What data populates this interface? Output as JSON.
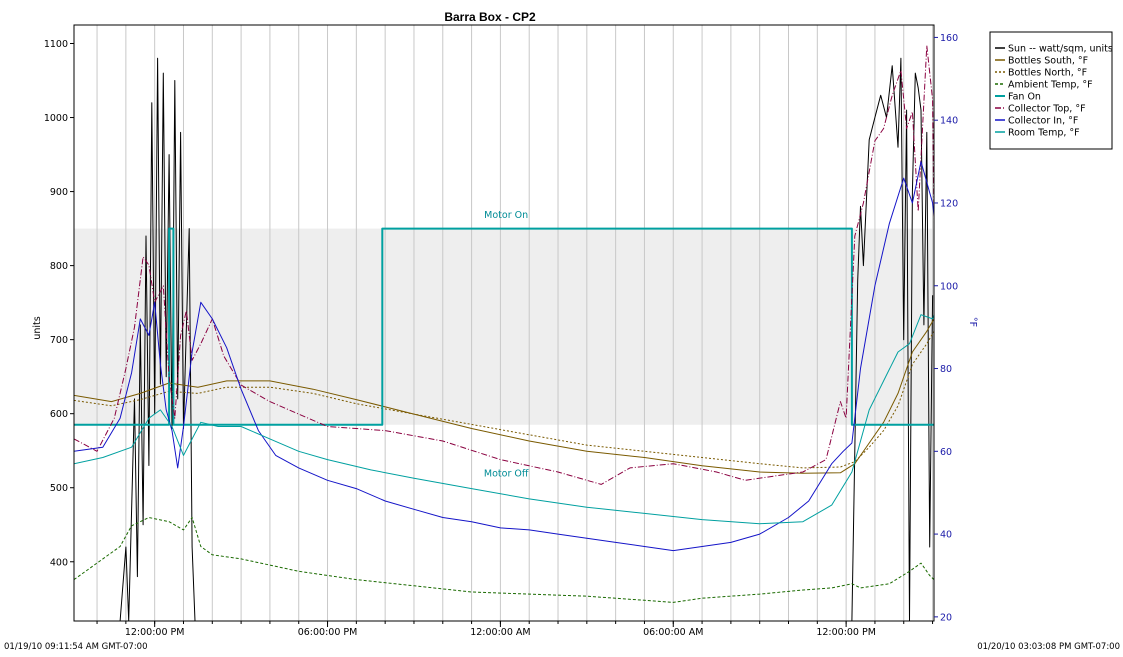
{
  "chart_data": {
    "type": "line",
    "title": "Barra Box - CP2",
    "ylabel": "units",
    "y2label": "°F",
    "ylim": [
      320,
      1125
    ],
    "y2lim": [
      19,
      163
    ],
    "yticks": [
      400,
      500,
      600,
      700,
      800,
      900,
      1000,
      1100
    ],
    "y2ticks": [
      20,
      40,
      60,
      80,
      100,
      120,
      140,
      160
    ],
    "xlim": [
      9.2,
      39.05
    ],
    "xticks": [
      {
        "t": 12,
        "label": "12:00:00 PM"
      },
      {
        "t": 18,
        "label": "06:00:00 PM"
      },
      {
        "t": 24,
        "label": "12:00:00 AM"
      },
      {
        "t": 30,
        "label": "06:00:00 AM"
      },
      {
        "t": 36,
        "label": "12:00:00 PM"
      }
    ],
    "start_label": "01/19/10 09:11:54 AM GMT-07:00",
    "end_label": "01/20/10 03:03:08 PM GMT-07:00",
    "grid": "vertical",
    "legend_position": "top-right",
    "shaded_band": [
      585,
      850
    ],
    "annotations": [
      {
        "text": "Motor On",
        "x": 24.2,
        "y": 864
      },
      {
        "text": "Motor Off",
        "x": 24.2,
        "y": 515
      }
    ],
    "series": [
      {
        "name": "Sun -- watt/sqm, units",
        "axis": "left",
        "color": "#000000",
        "dash": "",
        "points": [
          [
            9.2,
            320
          ],
          [
            10.8,
            320
          ],
          [
            11.0,
            420
          ],
          [
            11.1,
            320
          ],
          [
            11.3,
            620
          ],
          [
            11.4,
            380
          ],
          [
            11.5,
            720
          ],
          [
            11.6,
            450
          ],
          [
            11.7,
            840
          ],
          [
            11.8,
            530
          ],
          [
            11.9,
            1020
          ],
          [
            12.0,
            600
          ],
          [
            12.1,
            1080
          ],
          [
            12.2,
            640
          ],
          [
            12.3,
            1060
          ],
          [
            12.4,
            650
          ],
          [
            12.5,
            950
          ],
          [
            12.6,
            580
          ],
          [
            12.7,
            1050
          ],
          [
            12.8,
            620
          ],
          [
            12.9,
            980
          ],
          [
            13.0,
            580
          ],
          [
            13.2,
            850
          ],
          [
            13.3,
            420
          ],
          [
            13.4,
            320
          ],
          [
            36.2,
            320
          ],
          [
            36.4,
            780
          ],
          [
            36.5,
            880
          ],
          [
            36.6,
            800
          ],
          [
            36.8,
            970
          ],
          [
            37.0,
            1000
          ],
          [
            37.2,
            1030
          ],
          [
            37.4,
            1000
          ],
          [
            37.6,
            1070
          ],
          [
            37.8,
            960
          ],
          [
            37.9,
            1080
          ],
          [
            38.0,
            700
          ],
          [
            38.1,
            1010
          ],
          [
            38.2,
            320
          ],
          [
            38.3,
            900
          ],
          [
            38.4,
            1060
          ],
          [
            38.5,
            1040
          ],
          [
            38.6,
            1010
          ],
          [
            38.7,
            720
          ],
          [
            38.8,
            980
          ],
          [
            38.9,
            420
          ],
          [
            39.0,
            760
          ]
        ]
      },
      {
        "name": "Bottles South, °F",
        "axis": "right",
        "color": "#7a5a00",
        "dash": "",
        "points": [
          [
            9.2,
            73.5
          ],
          [
            10.5,
            72
          ],
          [
            11.5,
            74
          ],
          [
            12.5,
            76.5
          ],
          [
            13.5,
            75.5
          ],
          [
            14.5,
            77
          ],
          [
            16,
            77
          ],
          [
            17.5,
            75
          ],
          [
            19,
            72.5
          ],
          [
            21,
            69
          ],
          [
            23,
            65.5
          ],
          [
            25,
            62.5
          ],
          [
            27,
            60
          ],
          [
            29,
            58.5
          ],
          [
            31,
            56.5
          ],
          [
            33,
            55
          ],
          [
            34.5,
            54.7
          ],
          [
            35.8,
            54.8
          ],
          [
            36.3,
            57
          ],
          [
            36.8,
            62
          ],
          [
            37.3,
            67
          ],
          [
            37.8,
            74
          ],
          [
            38.3,
            84
          ],
          [
            38.8,
            89
          ],
          [
            39.05,
            92
          ]
        ]
      },
      {
        "name": "Bottles North, °F",
        "axis": "right",
        "color": "#7a5a00",
        "dash": "2,2",
        "points": [
          [
            9.2,
            72.3
          ],
          [
            10.5,
            71
          ],
          [
            11.5,
            72.5
          ],
          [
            12.5,
            74.5
          ],
          [
            13.5,
            74
          ],
          [
            14.5,
            75.5
          ],
          [
            16,
            75.5
          ],
          [
            17.5,
            74
          ],
          [
            19,
            71.5
          ],
          [
            21,
            69
          ],
          [
            23,
            66.5
          ],
          [
            25,
            64
          ],
          [
            27,
            61.5
          ],
          [
            29,
            60
          ],
          [
            31,
            58.5
          ],
          [
            33,
            57
          ],
          [
            34.5,
            56
          ],
          [
            35.8,
            56.2
          ],
          [
            36.3,
            57.5
          ],
          [
            36.8,
            61
          ],
          [
            37.3,
            65
          ],
          [
            37.8,
            71
          ],
          [
            38.3,
            81
          ],
          [
            38.8,
            86
          ],
          [
            39.05,
            89
          ]
        ]
      },
      {
        "name": "Ambient Temp, °F",
        "axis": "right",
        "color": "#1a6a00",
        "dash": "3,2",
        "points": [
          [
            9.2,
            29
          ],
          [
            10,
            33
          ],
          [
            10.8,
            37
          ],
          [
            11.2,
            42
          ],
          [
            11.8,
            44
          ],
          [
            12.5,
            43
          ],
          [
            13.0,
            41
          ],
          [
            13.3,
            44
          ],
          [
            13.6,
            37
          ],
          [
            14,
            35
          ],
          [
            15,
            34
          ],
          [
            17,
            31
          ],
          [
            19,
            29
          ],
          [
            21,
            27.5
          ],
          [
            23,
            26
          ],
          [
            25,
            25.5
          ],
          [
            27,
            25
          ],
          [
            29,
            24
          ],
          [
            30,
            23.5
          ],
          [
            31,
            24.5
          ],
          [
            33,
            25.5
          ],
          [
            34.5,
            26.5
          ],
          [
            35.5,
            27
          ],
          [
            36.2,
            28
          ],
          [
            36.5,
            27
          ],
          [
            37.5,
            28
          ],
          [
            38.2,
            31
          ],
          [
            38.6,
            33
          ],
          [
            38.9,
            30
          ],
          [
            39.05,
            29
          ]
        ]
      },
      {
        "name": "Fan On",
        "axis": "left",
        "color": "#00a0a0",
        "dash": "",
        "width": 2,
        "points": [
          [
            9.2,
            585
          ],
          [
            12.5,
            585
          ],
          [
            12.5,
            850
          ],
          [
            12.65,
            850
          ],
          [
            12.65,
            585
          ],
          [
            19.9,
            585
          ],
          [
            19.9,
            850
          ],
          [
            36.2,
            850
          ],
          [
            36.2,
            585
          ],
          [
            39.05,
            585
          ]
        ]
      },
      {
        "name": "Collector Top, °F",
        "axis": "right",
        "color": "#8a0040",
        "dash": "6,2,1,2",
        "points": [
          [
            9.2,
            63
          ],
          [
            10,
            60
          ],
          [
            10.6,
            68
          ],
          [
            11.0,
            80
          ],
          [
            11.3,
            90
          ],
          [
            11.6,
            107
          ],
          [
            11.8,
            105
          ],
          [
            12.0,
            96
          ],
          [
            12.3,
            100
          ],
          [
            12.5,
            78
          ],
          [
            12.7,
            68
          ],
          [
            12.9,
            88
          ],
          [
            13.1,
            94
          ],
          [
            13.3,
            82
          ],
          [
            13.6,
            86
          ],
          [
            14,
            92
          ],
          [
            14.4,
            83
          ],
          [
            15,
            76
          ],
          [
            16,
            72
          ],
          [
            17,
            69
          ],
          [
            18,
            66
          ],
          [
            20,
            65
          ],
          [
            22,
            62.5
          ],
          [
            24,
            58
          ],
          [
            26,
            55
          ],
          [
            27.5,
            52
          ],
          [
            28.5,
            56
          ],
          [
            30,
            57
          ],
          [
            31.5,
            55
          ],
          [
            32.5,
            53
          ],
          [
            33.5,
            54
          ],
          [
            34.5,
            55
          ],
          [
            35.3,
            58
          ],
          [
            35.8,
            72
          ],
          [
            36.0,
            68
          ],
          [
            36.3,
            112
          ],
          [
            36.6,
            120
          ],
          [
            37.0,
            135
          ],
          [
            37.3,
            138
          ],
          [
            37.6,
            146
          ],
          [
            37.9,
            152
          ],
          [
            38.1,
            138
          ],
          [
            38.3,
            142
          ],
          [
            38.5,
            118
          ],
          [
            38.8,
            158
          ],
          [
            39.0,
            145
          ],
          [
            39.05,
            115
          ]
        ]
      },
      {
        "name": "Collector In, °F",
        "axis": "right",
        "color": "#1414c8",
        "dash": "",
        "points": [
          [
            9.2,
            60
          ],
          [
            10.2,
            61
          ],
          [
            10.8,
            68
          ],
          [
            11.2,
            79
          ],
          [
            11.5,
            92
          ],
          [
            11.8,
            88
          ],
          [
            12.0,
            96
          ],
          [
            12.2,
            81
          ],
          [
            12.4,
            70
          ],
          [
            12.6,
            65
          ],
          [
            12.8,
            56
          ],
          [
            13.0,
            66
          ],
          [
            13.3,
            84
          ],
          [
            13.6,
            96
          ],
          [
            14,
            92
          ],
          [
            14.5,
            85
          ],
          [
            15,
            75
          ],
          [
            15.6,
            65
          ],
          [
            16.2,
            59
          ],
          [
            17,
            56
          ],
          [
            18,
            53
          ],
          [
            19,
            51
          ],
          [
            20,
            48
          ],
          [
            21,
            46
          ],
          [
            22,
            44
          ],
          [
            23,
            43
          ],
          [
            24,
            41.5
          ],
          [
            25,
            41
          ],
          [
            26,
            40
          ],
          [
            27,
            39
          ],
          [
            28,
            38
          ],
          [
            29,
            37
          ],
          [
            30,
            36
          ],
          [
            31,
            37
          ],
          [
            32,
            38
          ],
          [
            33,
            40
          ],
          [
            34,
            44
          ],
          [
            34.7,
            48
          ],
          [
            35.5,
            57
          ],
          [
            35.9,
            60
          ],
          [
            36.2,
            62
          ],
          [
            36.5,
            80
          ],
          [
            37.0,
            100
          ],
          [
            37.5,
            115
          ],
          [
            38.0,
            126
          ],
          [
            38.3,
            120
          ],
          [
            38.6,
            130
          ],
          [
            39.0,
            120
          ],
          [
            39.05,
            117
          ]
        ]
      },
      {
        "name": "Room Temp, °F",
        "axis": "right",
        "color": "#00a0a0",
        "dash": "",
        "points": [
          [
            9.2,
            57
          ],
          [
            10.2,
            58.5
          ],
          [
            11.2,
            61
          ],
          [
            11.8,
            68
          ],
          [
            12.2,
            70
          ],
          [
            12.6,
            66
          ],
          [
            13.0,
            59
          ],
          [
            13.3,
            63
          ],
          [
            13.6,
            67
          ],
          [
            14.2,
            66
          ],
          [
            15,
            66
          ],
          [
            16,
            63
          ],
          [
            17,
            60
          ],
          [
            18,
            58
          ],
          [
            19.5,
            55.5
          ],
          [
            21,
            53.5
          ],
          [
            23,
            51
          ],
          [
            25,
            48.5
          ],
          [
            27,
            46.5
          ],
          [
            29,
            45
          ],
          [
            31,
            43.5
          ],
          [
            33,
            42.5
          ],
          [
            34.5,
            43
          ],
          [
            35.5,
            47
          ],
          [
            36.2,
            55
          ],
          [
            36.8,
            70
          ],
          [
            37.3,
            77
          ],
          [
            37.8,
            84
          ],
          [
            38.2,
            86
          ],
          [
            38.6,
            93
          ],
          [
            39.0,
            92
          ],
          [
            39.05,
            93
          ]
        ]
      }
    ]
  }
}
